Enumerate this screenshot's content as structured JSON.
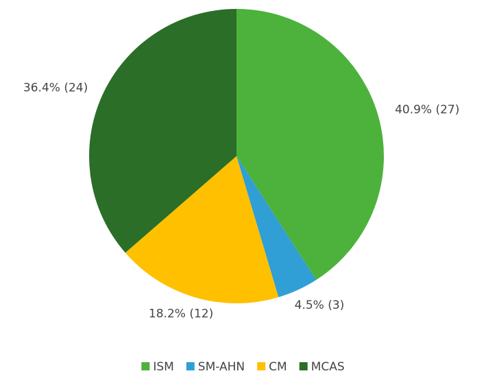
{
  "chart_data": {
    "type": "pie",
    "categories": [
      "ISM",
      "SM-AHN",
      "CM",
      "MCAS"
    ],
    "values": [
      40.9,
      4.5,
      18.2,
      36.4
    ],
    "value_labels": [
      "40.9% (27)",
      "4.5% (3)",
      "18.2% (12)",
      "36.4% (24)"
    ],
    "colors": [
      "#4cb23c",
      "#2f9fd6",
      "#ffc000",
      "#2b6e27"
    ],
    "legend": "bottom"
  }
}
